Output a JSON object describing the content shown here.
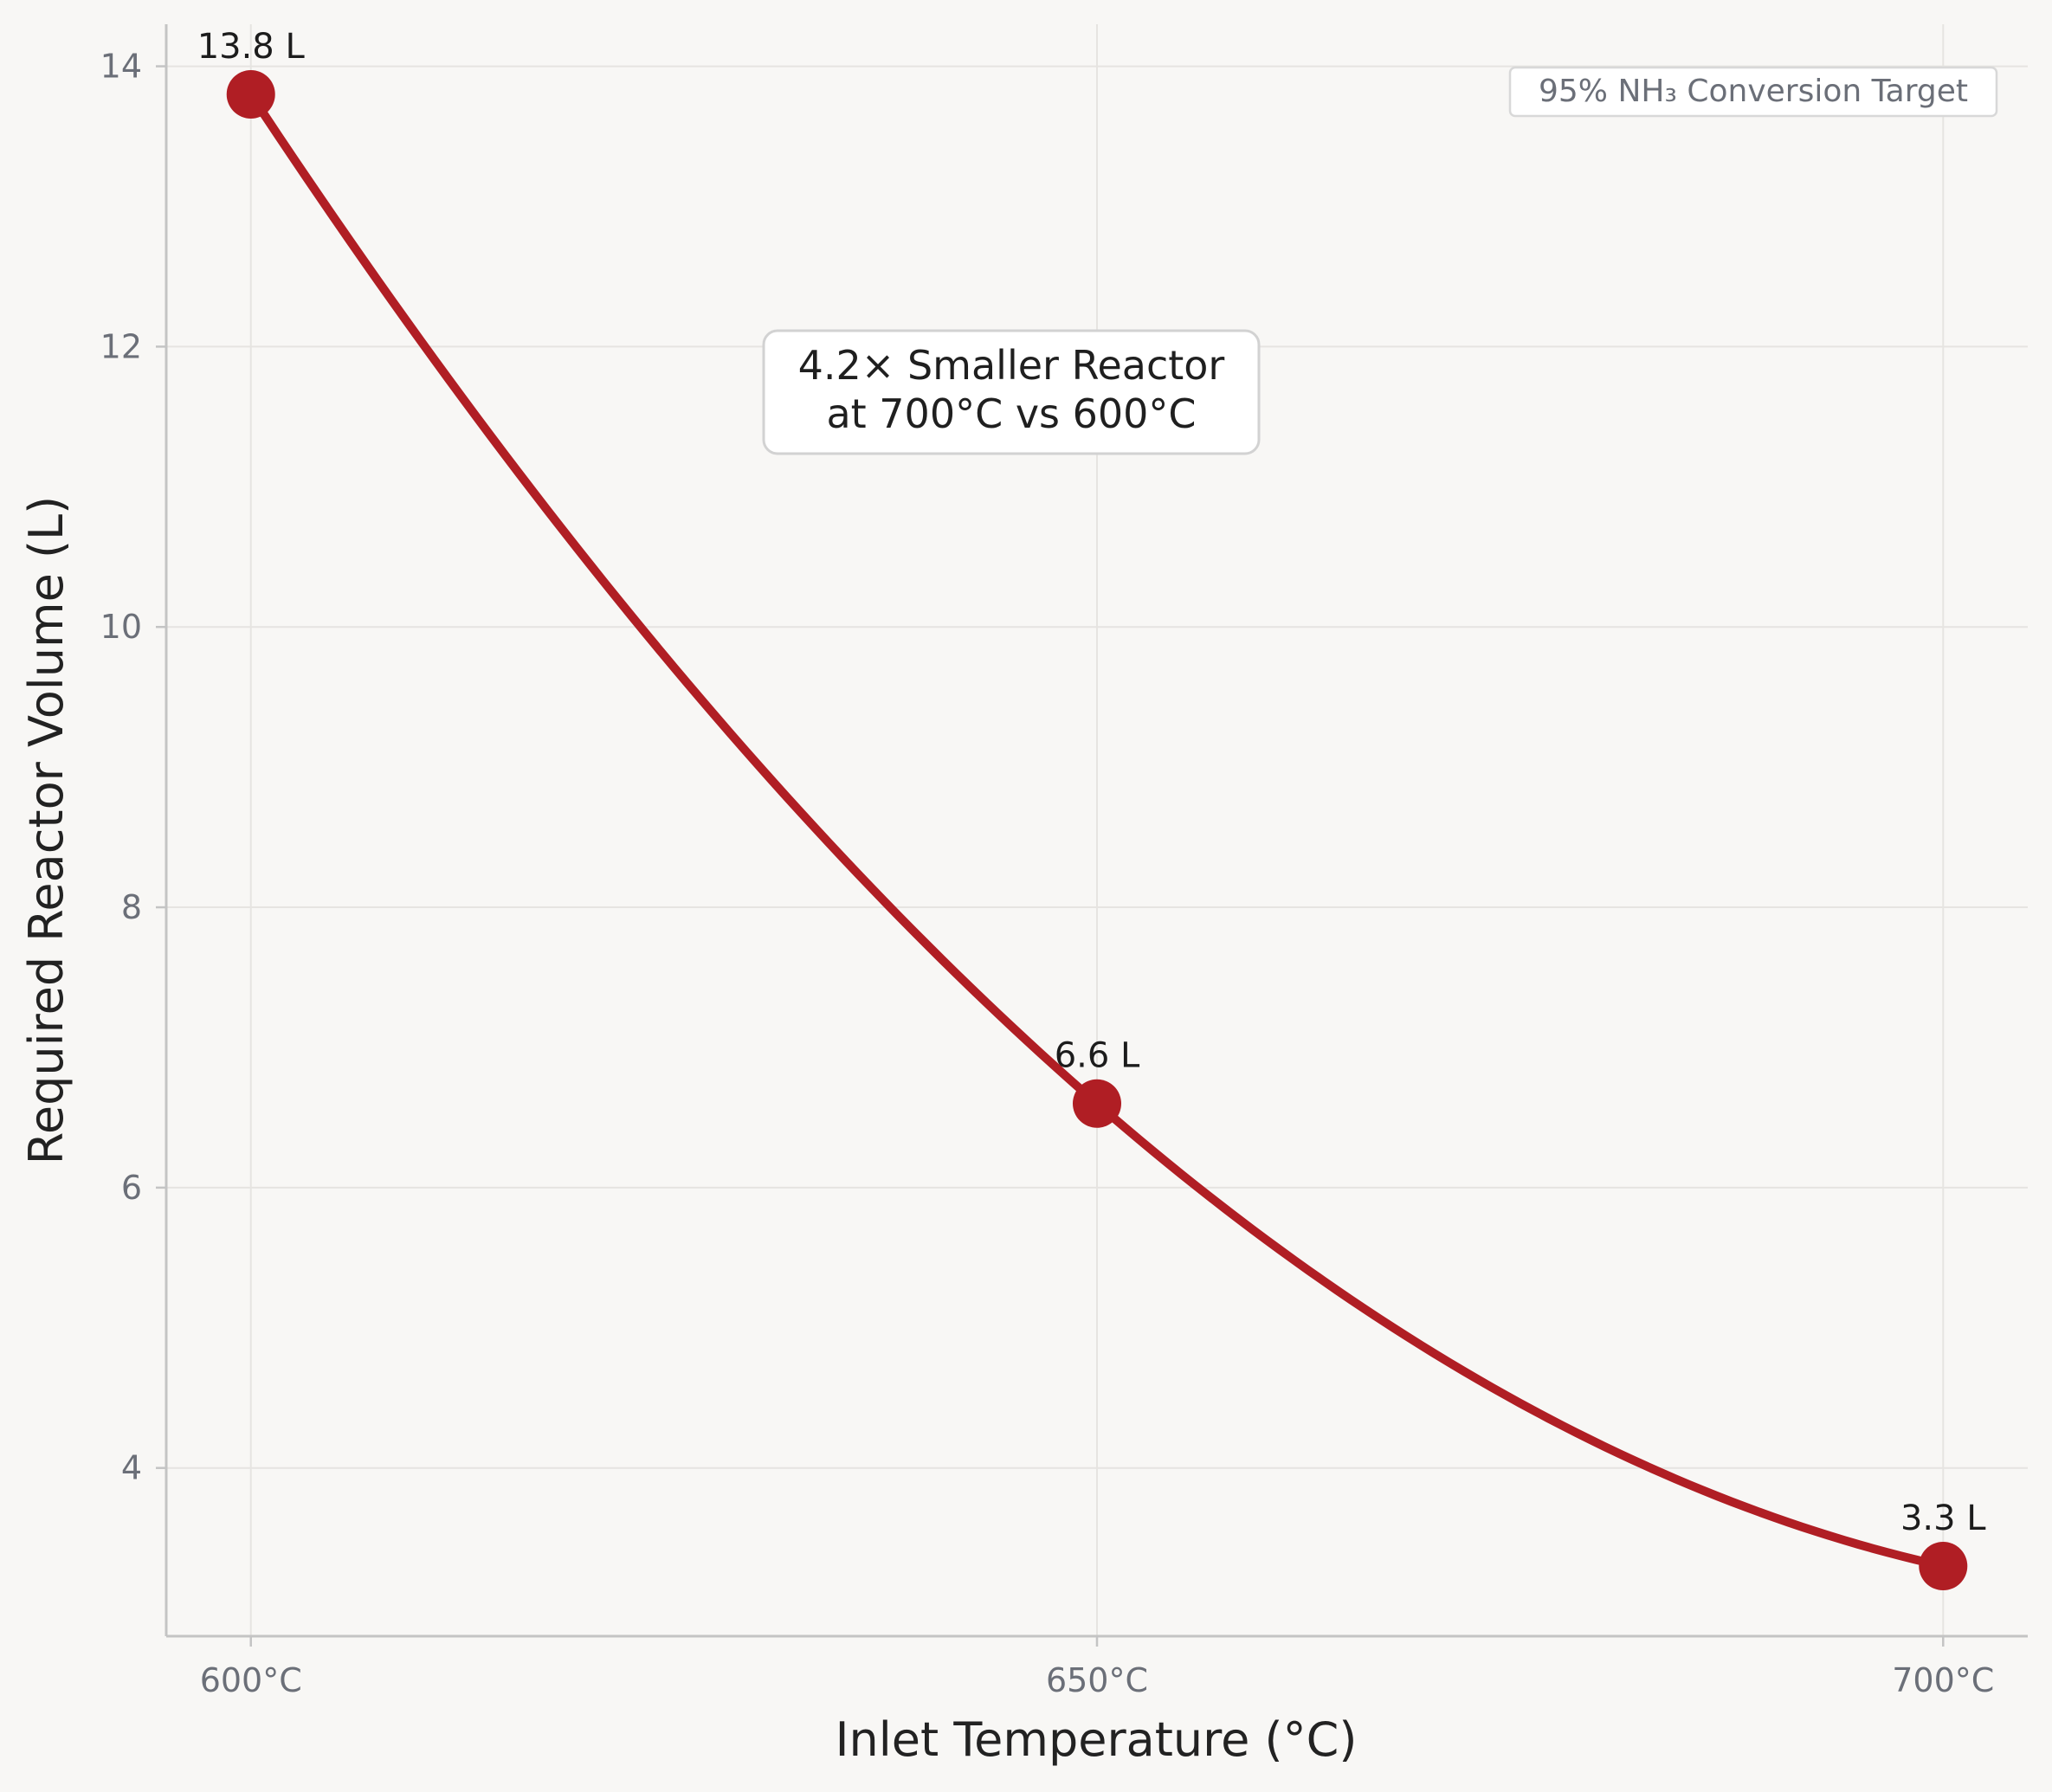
{
  "chart_data": {
    "type": "line",
    "title": "",
    "xlabel": "Inlet Temperature (°C)",
    "ylabel": "Required Reactor Volume (L)",
    "x": [
      600,
      650,
      700
    ],
    "x_tick_labels": [
      "600°C",
      "650°C",
      "700°C"
    ],
    "y_ticks": [
      4,
      6,
      8,
      10,
      12,
      14
    ],
    "y_tick_labels": [
      "4",
      "6",
      "8",
      "10",
      "12",
      "14"
    ],
    "xlim": [
      595,
      705
    ],
    "ylim": [
      2.8,
      14.3
    ],
    "grid": true,
    "series": [
      {
        "values": [
          13.8,
          6.6,
          3.3
        ],
        "point_labels": [
          "13.8 L",
          "6.6 L",
          "3.3 L"
        ],
        "color": "#b01e24"
      }
    ],
    "annotations": {
      "callout_line1": "4.2× Smaller Reactor",
      "callout_line2": "at 700°C vs 600°C",
      "target_label": "95% NH₃ Conversion Target"
    }
  }
}
